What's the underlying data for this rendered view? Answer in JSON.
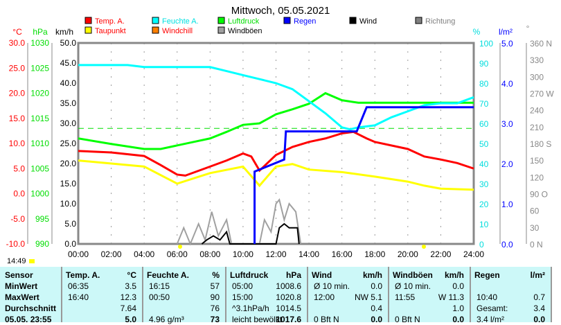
{
  "title": "Mittwoch, 05.05.2021",
  "legend": [
    {
      "label": "Temp. A.",
      "color": "#ff0000",
      "text": "#ff0000"
    },
    {
      "label": "Feuchte A.",
      "color": "#00ffff",
      "text": "#00e0e0"
    },
    {
      "label": "Luftdruck",
      "color": "#00ff00",
      "text": "#00dd00"
    },
    {
      "label": "Regen",
      "color": "#0000ff",
      "text": "#0000ff"
    },
    {
      "label": "Wind",
      "color": "#000000",
      "text": "#000000"
    },
    {
      "label": "Richtung",
      "color": "#808080",
      "text": "#808080"
    },
    {
      "label": "Taupunkt",
      "color": "#ffff00",
      "text": "#ff0000"
    },
    {
      "label": "Windchill",
      "color": "#ff8000",
      "text": "#ff0000"
    },
    {
      "label": "Windböen",
      "color": "#a0a0a0",
      "text": "#000000"
    }
  ],
  "axes": {
    "temp": {
      "unit": "°C",
      "ticks": [
        "30.0",
        "25.0",
        "20.0",
        "15.0",
        "10.0",
        "5.0",
        "0.0",
        "-5.0",
        "-10.0"
      ]
    },
    "pressure": {
      "unit": "hPa",
      "ticks": [
        "1030",
        "1025",
        "1020",
        "1015",
        "1010",
        "1005",
        "1000",
        "995",
        "990"
      ]
    },
    "wind": {
      "unit": "km/h",
      "ticks": [
        "50.0",
        "45.0",
        "40.0",
        "35.0",
        "30.0",
        "25.0",
        "20.0",
        "15.0",
        "10.0",
        "5.0",
        "0.0"
      ]
    },
    "humidity": {
      "unit": "%",
      "ticks": [
        "100",
        "90",
        "80",
        "70",
        "60",
        "50",
        "40",
        "30",
        "20",
        "10",
        "0"
      ]
    },
    "rain": {
      "unit": "l/m²",
      "ticks": [
        "5.0",
        "4.0",
        "3.0",
        "2.0",
        "1.0",
        "0.0"
      ]
    },
    "direction": {
      "unit": "°",
      "ticks": [
        "360 N",
        "330",
        "300",
        "270 W",
        "240",
        "210",
        "180 S",
        "150",
        "120",
        "90  O",
        "60",
        "30",
        "0   N"
      ]
    },
    "x_ticks": [
      "00:00",
      "02:00",
      "04:00",
      "06:00",
      "08:00",
      "10:00",
      "12:00",
      "14:00",
      "16:00",
      "18:00",
      "20:00",
      "22:00",
      "24:00"
    ]
  },
  "clock": "14:49",
  "chart_data": {
    "type": "line",
    "title": "Mittwoch, 05.05.2021",
    "xlim": [
      0,
      24
    ],
    "series": [
      {
        "name": "Temp. A.",
        "axis": "temp",
        "color": "#ff0000",
        "points": [
          [
            0,
            8.5
          ],
          [
            2,
            8.2
          ],
          [
            4,
            7.5
          ],
          [
            5,
            5.7
          ],
          [
            6,
            3.8
          ],
          [
            6.5,
            3.6
          ],
          [
            8,
            5.4
          ],
          [
            9,
            6.6
          ],
          [
            10,
            8
          ],
          [
            10.5,
            7.4
          ],
          [
            11,
            4.6
          ],
          [
            12,
            7.7
          ],
          [
            13,
            9.3
          ],
          [
            14,
            10.3
          ],
          [
            15,
            11
          ],
          [
            16,
            12
          ],
          [
            16.7,
            12.3
          ],
          [
            17.5,
            11
          ],
          [
            18,
            10.3
          ],
          [
            20,
            8.9
          ],
          [
            21,
            7.4
          ],
          [
            22,
            6.8
          ],
          [
            23,
            6.1
          ],
          [
            24,
            5
          ]
        ]
      },
      {
        "name": "Taupunkt",
        "axis": "temp",
        "color": "#ffff00",
        "points": [
          [
            0,
            6.6
          ],
          [
            4,
            5.4
          ],
          [
            6,
            2
          ],
          [
            8,
            4.1
          ],
          [
            10,
            5.4
          ],
          [
            11,
            1.6
          ],
          [
            12,
            5.4
          ],
          [
            13,
            5.9
          ],
          [
            14,
            4.8
          ],
          [
            16,
            4.3
          ],
          [
            18,
            3.4
          ],
          [
            20,
            2.4
          ],
          [
            21,
            1.6
          ],
          [
            22,
            1
          ],
          [
            24,
            0.8
          ]
        ]
      },
      {
        "name": "Feuchte A.",
        "axis": "humidity",
        "color": "#00ffff",
        "points": [
          [
            0,
            89
          ],
          [
            3,
            89
          ],
          [
            4,
            88
          ],
          [
            8,
            88
          ],
          [
            9,
            86
          ],
          [
            10,
            84
          ],
          [
            11,
            82
          ],
          [
            12,
            80
          ],
          [
            13,
            77
          ],
          [
            14,
            71
          ],
          [
            15,
            65
          ],
          [
            16,
            58
          ],
          [
            16.5,
            57
          ],
          [
            17,
            58
          ],
          [
            18,
            59
          ],
          [
            19,
            63
          ],
          [
            20,
            66
          ],
          [
            21,
            69
          ],
          [
            22,
            70
          ],
          [
            23,
            70
          ],
          [
            24,
            73
          ]
        ]
      },
      {
        "name": "Luftdruck",
        "axis": "pressure",
        "color": "#00ff00",
        "points": [
          [
            0,
            1011
          ],
          [
            2,
            1009.9
          ],
          [
            4,
            1008.9
          ],
          [
            5,
            1008.9
          ],
          [
            7,
            1010.3
          ],
          [
            8,
            1011
          ],
          [
            9,
            1012.3
          ],
          [
            10,
            1013.7
          ],
          [
            11,
            1014
          ],
          [
            12,
            1015.8
          ],
          [
            13,
            1016.8
          ],
          [
            14,
            1017.9
          ],
          [
            15,
            1020
          ],
          [
            16,
            1018.6
          ],
          [
            17,
            1018.1
          ],
          [
            20,
            1018.1
          ],
          [
            24,
            1018.1
          ]
        ]
      },
      {
        "name": "Regen",
        "axis": "rain",
        "color": "#0000ff",
        "points": [
          [
            10.7,
            0
          ],
          [
            10.7,
            1.8
          ],
          [
            12.5,
            2.1
          ],
          [
            12.6,
            2.8
          ],
          [
            16.9,
            2.8
          ],
          [
            17.5,
            3.4
          ],
          [
            24,
            3.4
          ]
        ]
      },
      {
        "name": "Windböen",
        "axis": "wind",
        "color": "#a0a0a0",
        "points": [
          [
            6,
            0
          ],
          [
            6.4,
            4
          ],
          [
            6.8,
            0
          ],
          [
            7.3,
            5
          ],
          [
            7.7,
            1
          ],
          [
            8.1,
            8
          ],
          [
            8.5,
            2
          ],
          [
            9,
            6
          ],
          [
            9.3,
            0
          ],
          [
            11,
            0
          ],
          [
            11.3,
            6
          ],
          [
            11.7,
            3
          ],
          [
            12,
            10
          ],
          [
            12.2,
            11
          ],
          [
            12.5,
            6
          ],
          [
            12.8,
            10
          ],
          [
            13.2,
            8
          ],
          [
            13.5,
            0
          ]
        ]
      },
      {
        "name": "Wind",
        "axis": "wind",
        "color": "#000000",
        "points": [
          [
            7.5,
            0
          ],
          [
            7.8,
            1
          ],
          [
            8.2,
            2
          ],
          [
            8.6,
            1
          ],
          [
            9,
            3
          ],
          [
            9.2,
            0
          ],
          [
            12,
            0
          ],
          [
            12.2,
            4
          ],
          [
            12.5,
            5
          ],
          [
            12.8,
            4
          ],
          [
            13.3,
            4
          ],
          [
            13.4,
            0
          ]
        ]
      }
    ],
    "reference_pressure": 1013
  },
  "table": {
    "headers": [
      [
        "Sensor",
        ""
      ],
      [
        "Temp. A.",
        "°C"
      ],
      [
        "Feuchte A.",
        "%"
      ],
      [
        "Luftdruck",
        "hPa"
      ],
      [
        "Wind",
        "km/h"
      ],
      [
        "Windböen",
        "km/h"
      ],
      [
        "Regen",
        "l/m²"
      ]
    ],
    "rows": [
      {
        "label": "MinWert",
        "cells": [
          [
            "06:35",
            "3.5"
          ],
          [
            "16:15",
            "57"
          ],
          [
            "05:00",
            "1008.6"
          ],
          [
            "Ø 10 min.",
            "0.0"
          ],
          [
            "Ø 10 min.",
            "0.0"
          ],
          [
            "",
            ""
          ]
        ]
      },
      {
        "label": "MaxWert",
        "cells": [
          [
            "16:40",
            "12.3"
          ],
          [
            "00:50",
            "90"
          ],
          [
            "15:00",
            "1020.8"
          ],
          [
            "12:00",
            "NW 5.1"
          ],
          [
            "11:55",
            "W 11.3"
          ],
          [
            "10:40",
            "0.7"
          ]
        ]
      },
      {
        "label": "Durchschnitt",
        "cells": [
          [
            "",
            "7.64"
          ],
          [
            "",
            "76"
          ],
          [
            "^3.1hPa/h",
            "1014.5"
          ],
          [
            "",
            "0.4"
          ],
          [
            "",
            "1.0"
          ],
          [
            "Gesamt:",
            "3.4"
          ]
        ]
      },
      {
        "label": "05.05. 23:55",
        "cells": [
          [
            "",
            "5.0"
          ],
          [
            "4.96 g/m³",
            "73"
          ],
          [
            "leicht bewölkt",
            "1017.6"
          ],
          [
            "0 Bft N",
            "0.0"
          ],
          [
            "0 Bft N",
            "0.0"
          ],
          [
            "3.4 l/m²",
            "0.0"
          ]
        ]
      }
    ]
  }
}
